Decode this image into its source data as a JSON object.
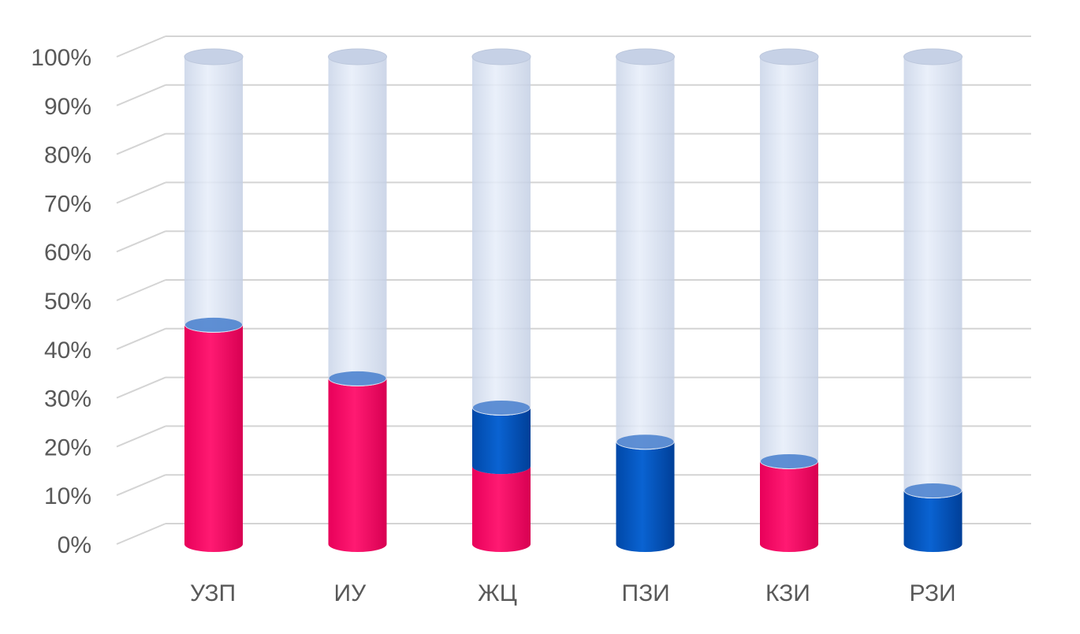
{
  "chart_data": {
    "type": "bar",
    "style": "3d-cylinder-stacked",
    "categories": [
      "УЗП",
      "ИУ",
      "ЖЦ",
      "ПЗИ",
      "КЗИ",
      "РЗИ"
    ],
    "series": [
      {
        "color": "#f0005f",
        "values": [
          45,
          34,
          16,
          0,
          17,
          0
        ]
      },
      {
        "color": "#0055bf",
        "values": [
          0,
          0,
          12,
          21,
          0,
          11
        ]
      },
      {
        "color": "#dfe7f5",
        "values": [
          55,
          66,
          72,
          79,
          83,
          89
        ]
      }
    ],
    "yticks": [
      "0%",
      "10%",
      "20%",
      "30%",
      "40%",
      "50%",
      "60%",
      "70%",
      "80%",
      "90%",
      "100%"
    ],
    "ylim": [
      0,
      100
    ],
    "grid": true,
    "legend": "none"
  }
}
